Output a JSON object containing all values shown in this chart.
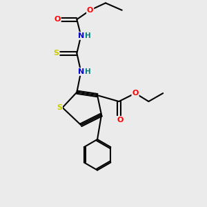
{
  "bg_color": "#ebebeb",
  "atom_colors": {
    "C": "#000000",
    "N": "#0000cc",
    "O": "#ff0000",
    "S": "#cccc00",
    "H": "#008080"
  },
  "bond_color": "#000000",
  "bond_width": 1.5
}
